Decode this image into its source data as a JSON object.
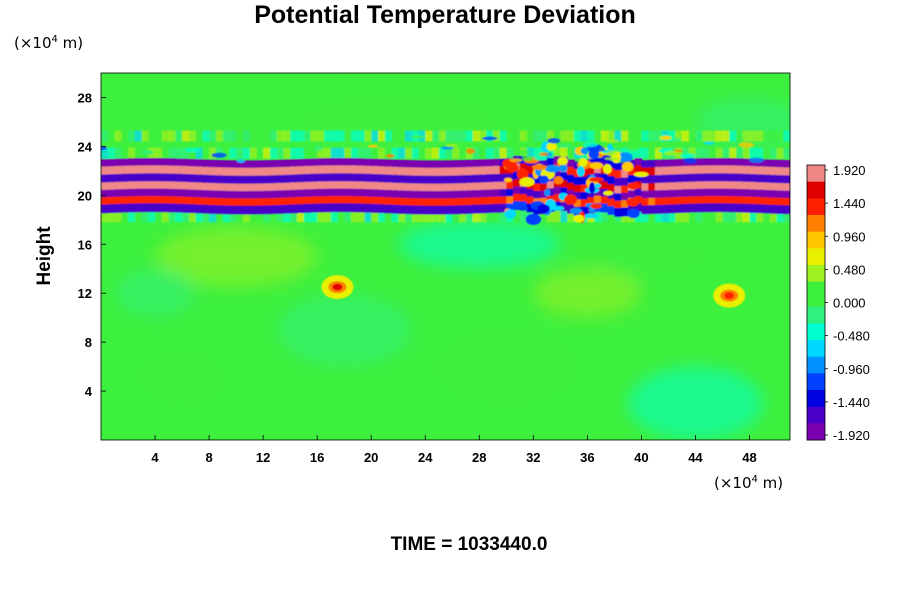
{
  "chart_data": {
    "type": "heatmap",
    "title": "Potential Temperature Deviation",
    "ylabel": "Height",
    "xlabel": "",
    "x_unit_prefix": "(×10",
    "x_unit_exp": "4",
    "x_unit_suffix": " m)",
    "y_unit_prefix": "(×10",
    "y_unit_exp": "4",
    "y_unit_suffix": " m)",
    "xlim": [
      0,
      51
    ],
    "ylim": [
      0,
      30
    ],
    "x_ticks": [
      4,
      8,
      12,
      16,
      20,
      24,
      28,
      32,
      36,
      40,
      44,
      48
    ],
    "y_ticks": [
      4,
      8,
      12,
      16,
      20,
      24,
      28
    ],
    "colorbar": {
      "ticks": [
        "1.920",
        "1.440",
        "0.960",
        "0.480",
        "0.000",
        "-0.480",
        "-0.960",
        "-1.440",
        "-1.920"
      ],
      "range": [
        -1.92,
        1.92
      ],
      "levels": 33
    },
    "features": [
      {
        "description": "strong alternating band",
        "y_center": 20.7,
        "x_range": [
          0,
          51
        ],
        "amplitude": 1.92
      },
      {
        "description": "local warm anomaly",
        "x": 17.5,
        "y": 12.5,
        "value": 1.6
      },
      {
        "description": "local warm anomaly",
        "x": 46.5,
        "y": 11.8,
        "value": 1.5
      },
      {
        "description": "wave disturbance",
        "x_range": [
          30,
          40
        ],
        "y_range": [
          18,
          24
        ],
        "amplitude": 1.5
      }
    ],
    "background_value": 0.0
  },
  "footer": "TIME = 1033440.0",
  "colors": {
    "background_field": "#3ef03e",
    "colormap": [
      "#7a00b0",
      "#4a00c8",
      "#0000e0",
      "#0040ff",
      "#0090ff",
      "#00d8ff",
      "#00ffd0",
      "#30f080",
      "#3ef03e",
      "#a0f020",
      "#e8f000",
      "#ffc800",
      "#ff8000",
      "#ff2000",
      "#e00000",
      "#f08888"
    ]
  }
}
